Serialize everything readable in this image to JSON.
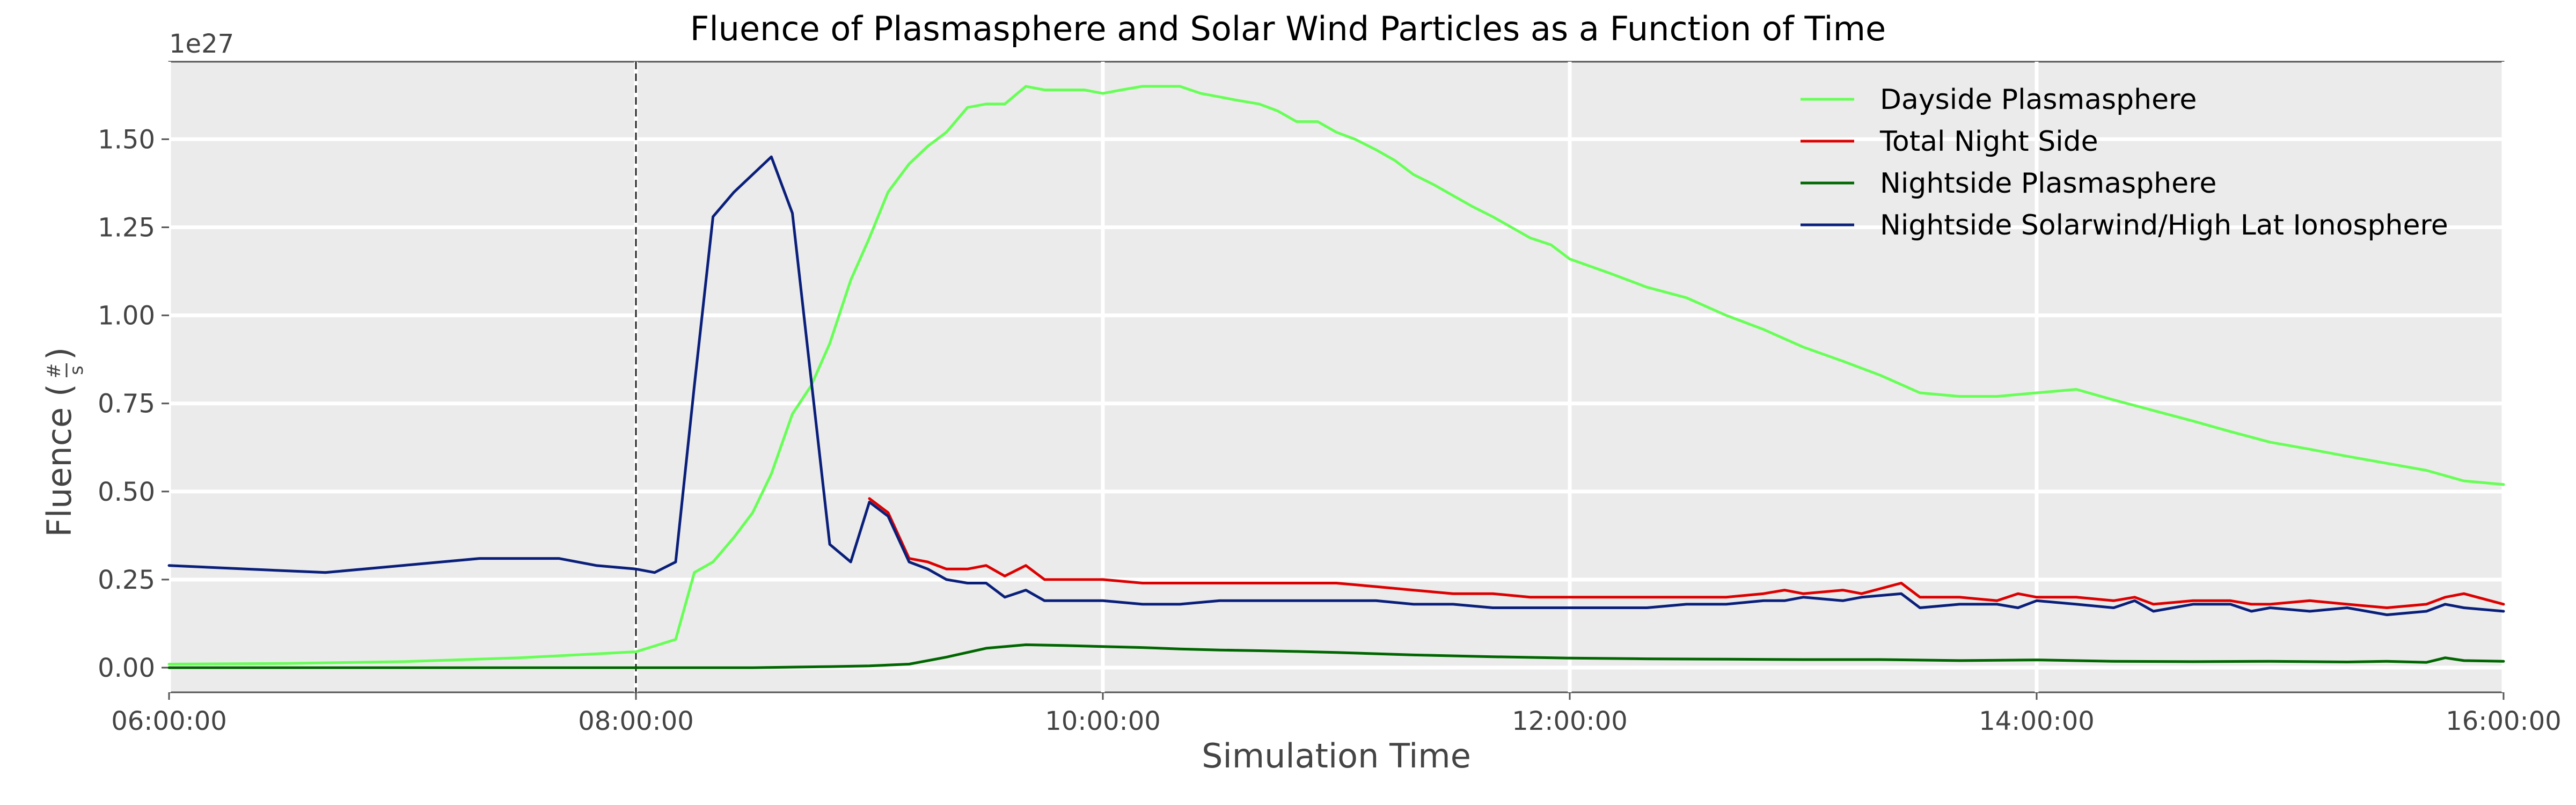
{
  "chart_data": {
    "type": "line",
    "title": "Fluence of Plasmasphere and Solar Wind Particles as a Function of Time",
    "xlabel": "Simulation Time",
    "ylabel": "Fluence (#/s)",
    "ylabel_main": "Fluence (",
    "ylabel_num": "#",
    "ylabel_den": "s",
    "ylabel_close": ")",
    "y_offset_label": "1e27",
    "x_unit": "hours of simulation day",
    "xlim": [
      6.0,
      16.0
    ],
    "ylim": [
      -0.07,
      1.72
    ],
    "x_ticks": [
      {
        "value": 6,
        "label": "06:00:00"
      },
      {
        "value": 8,
        "label": "08:00:00"
      },
      {
        "value": 10,
        "label": "10:00:00"
      },
      {
        "value": 12,
        "label": "12:00:00"
      },
      {
        "value": 14,
        "label": "14:00:00"
      },
      {
        "value": 16,
        "label": "16:00:00"
      }
    ],
    "y_ticks": [
      {
        "value": 0.0,
        "label": "0.00"
      },
      {
        "value": 0.25,
        "label": "0.25"
      },
      {
        "value": 0.5,
        "label": "0.50"
      },
      {
        "value": 0.75,
        "label": "0.75"
      },
      {
        "value": 1.0,
        "label": "1.00"
      },
      {
        "value": 1.25,
        "label": "1.25"
      },
      {
        "value": 1.5,
        "label": "1.50"
      }
    ],
    "vline_x": 8.0,
    "grid": true,
    "legend_position": "top-right",
    "series": [
      {
        "name": "Dayside Plasmasphere",
        "color": "#66ff55",
        "x": [
          6.0,
          6.5,
          7.0,
          7.5,
          8.0,
          8.17,
          8.25,
          8.33,
          8.42,
          8.5,
          8.58,
          8.67,
          8.75,
          8.83,
          8.92,
          9.0,
          9.08,
          9.17,
          9.25,
          9.33,
          9.42,
          9.5,
          9.58,
          9.67,
          9.75,
          9.83,
          9.92,
          10.0,
          10.08,
          10.17,
          10.25,
          10.33,
          10.42,
          10.5,
          10.58,
          10.67,
          10.75,
          10.83,
          10.92,
          11.0,
          11.08,
          11.17,
          11.25,
          11.33,
          11.42,
          11.5,
          11.58,
          11.67,
          11.75,
          11.83,
          11.92,
          12.0,
          12.17,
          12.33,
          12.5,
          12.67,
          12.83,
          13.0,
          13.17,
          13.33,
          13.5,
          13.67,
          13.83,
          14.0,
          14.17,
          14.33,
          14.5,
          14.67,
          14.83,
          15.0,
          15.17,
          15.33,
          15.5,
          15.67,
          15.83,
          16.0
        ],
        "values": [
          0.01,
          0.012,
          0.017,
          0.028,
          0.045,
          0.08,
          0.27,
          0.3,
          0.37,
          0.44,
          0.55,
          0.72,
          0.8,
          0.92,
          1.1,
          1.22,
          1.35,
          1.43,
          1.48,
          1.52,
          1.59,
          1.6,
          1.6,
          1.65,
          1.64,
          1.64,
          1.64,
          1.63,
          1.64,
          1.65,
          1.65,
          1.65,
          1.63,
          1.62,
          1.61,
          1.6,
          1.58,
          1.55,
          1.55,
          1.52,
          1.5,
          1.47,
          1.44,
          1.4,
          1.37,
          1.34,
          1.31,
          1.28,
          1.25,
          1.22,
          1.2,
          1.16,
          1.12,
          1.08,
          1.05,
          1.0,
          0.96,
          0.91,
          0.87,
          0.83,
          0.78,
          0.77,
          0.77,
          0.78,
          0.79,
          0.76,
          0.73,
          0.7,
          0.67,
          0.64,
          0.62,
          0.6,
          0.58,
          0.56,
          0.53,
          0.52
        ]
      },
      {
        "name": "Total Night Side",
        "color": "#dd0000",
        "x": [
          9.0,
          9.08,
          9.17,
          9.25,
          9.33,
          9.42,
          9.5,
          9.58,
          9.67,
          9.75,
          9.83,
          10.0,
          10.17,
          10.33,
          10.5,
          10.67,
          10.83,
          11.0,
          11.17,
          11.33,
          11.5,
          11.67,
          11.83,
          12.0,
          12.17,
          12.33,
          12.5,
          12.67,
          12.83,
          12.92,
          13.0,
          13.17,
          13.25,
          13.42,
          13.5,
          13.67,
          13.83,
          13.92,
          14.0,
          14.17,
          14.33,
          14.42,
          14.5,
          14.67,
          14.83,
          14.92,
          15.0,
          15.17,
          15.33,
          15.5,
          15.67,
          15.75,
          15.83,
          16.0
        ],
        "values": [
          0.48,
          0.44,
          0.31,
          0.3,
          0.28,
          0.28,
          0.29,
          0.26,
          0.29,
          0.25,
          0.25,
          0.25,
          0.24,
          0.24,
          0.24,
          0.24,
          0.24,
          0.24,
          0.23,
          0.22,
          0.21,
          0.21,
          0.2,
          0.2,
          0.2,
          0.2,
          0.2,
          0.2,
          0.21,
          0.22,
          0.21,
          0.22,
          0.21,
          0.24,
          0.2,
          0.2,
          0.19,
          0.21,
          0.2,
          0.2,
          0.19,
          0.2,
          0.18,
          0.19,
          0.19,
          0.18,
          0.18,
          0.19,
          0.18,
          0.17,
          0.18,
          0.2,
          0.21,
          0.18
        ]
      },
      {
        "name": "Nightside Plasmasphere",
        "color": "#006600",
        "x": [
          6.0,
          7.0,
          8.0,
          8.5,
          8.83,
          9.0,
          9.17,
          9.33,
          9.5,
          9.67,
          9.83,
          10.0,
          10.17,
          10.33,
          10.5,
          10.67,
          10.83,
          11.0,
          11.33,
          11.67,
          12.0,
          12.33,
          12.67,
          13.0,
          13.33,
          13.67,
          14.0,
          14.33,
          14.67,
          15.0,
          15.33,
          15.5,
          15.67,
          15.75,
          15.83,
          16.0
        ],
        "values": [
          0.0,
          0.0,
          0.0,
          0.0,
          0.003,
          0.005,
          0.01,
          0.03,
          0.055,
          0.065,
          0.063,
          0.06,
          0.057,
          0.053,
          0.05,
          0.048,
          0.046,
          0.043,
          0.036,
          0.031,
          0.027,
          0.025,
          0.024,
          0.023,
          0.023,
          0.02,
          0.022,
          0.018,
          0.017,
          0.018,
          0.016,
          0.018,
          0.015,
          0.028,
          0.02,
          0.018
        ]
      },
      {
        "name": "Nightside Solarwind/High Lat Ionosphere",
        "color": "#0a1f7a",
        "x": [
          6.0,
          6.33,
          6.67,
          7.0,
          7.33,
          7.67,
          7.83,
          8.0,
          8.08,
          8.17,
          8.25,
          8.33,
          8.42,
          8.5,
          8.58,
          8.67,
          8.75,
          8.83,
          8.92,
          9.0,
          9.08,
          9.17,
          9.25,
          9.33,
          9.42,
          9.5,
          9.58,
          9.67,
          9.75,
          9.83,
          10.0,
          10.17,
          10.33,
          10.5,
          10.67,
          10.83,
          11.0,
          11.17,
          11.33,
          11.5,
          11.67,
          11.83,
          12.0,
          12.17,
          12.33,
          12.5,
          12.67,
          12.83,
          12.92,
          13.0,
          13.17,
          13.25,
          13.42,
          13.5,
          13.67,
          13.83,
          13.92,
          14.0,
          14.17,
          14.33,
          14.42,
          14.5,
          14.67,
          14.83,
          14.92,
          15.0,
          15.17,
          15.33,
          15.5,
          15.67,
          15.75,
          15.83,
          16.0
        ],
        "values": [
          0.29,
          0.28,
          0.27,
          0.29,
          0.31,
          0.31,
          0.29,
          0.28,
          0.27,
          0.3,
          0.8,
          1.28,
          1.35,
          1.4,
          1.45,
          1.29,
          0.82,
          0.35,
          0.3,
          0.47,
          0.43,
          0.3,
          0.28,
          0.25,
          0.24,
          0.24,
          0.2,
          0.22,
          0.19,
          0.19,
          0.19,
          0.18,
          0.18,
          0.19,
          0.19,
          0.19,
          0.19,
          0.19,
          0.18,
          0.18,
          0.17,
          0.17,
          0.17,
          0.17,
          0.17,
          0.18,
          0.18,
          0.19,
          0.19,
          0.2,
          0.19,
          0.2,
          0.21,
          0.17,
          0.18,
          0.18,
          0.17,
          0.19,
          0.18,
          0.17,
          0.19,
          0.16,
          0.18,
          0.18,
          0.16,
          0.17,
          0.16,
          0.17,
          0.15,
          0.16,
          0.18,
          0.17,
          0.16
        ]
      }
    ]
  }
}
